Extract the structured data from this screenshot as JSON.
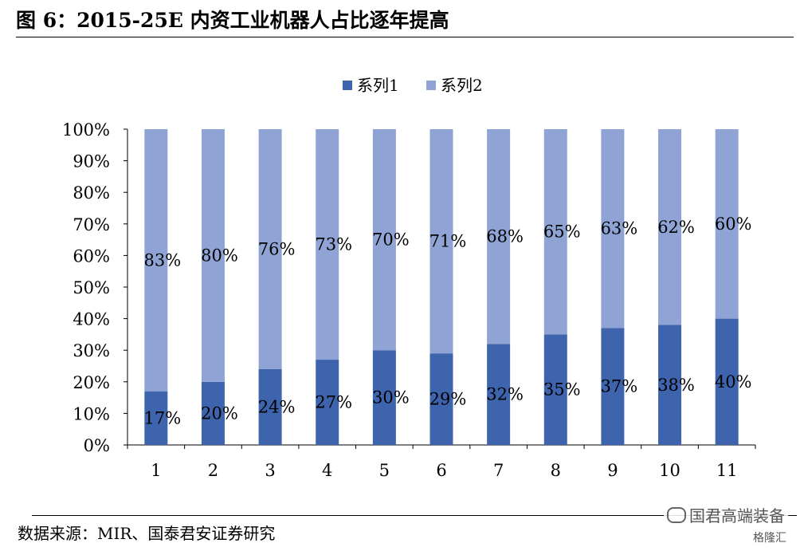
{
  "figure": {
    "title": "图 6：2015-25E 内资工业机器人占比逐年提高",
    "source": "数据来源：MIR、国泰君安证券研究",
    "watermark": "国君高端装备",
    "watermark_sub": "格隆汇"
  },
  "chart_data": {
    "type": "bar",
    "stacked": true,
    "title": "",
    "xlabel": "",
    "ylabel": "",
    "categories": [
      "1",
      "2",
      "3",
      "4",
      "5",
      "6",
      "7",
      "8",
      "9",
      "10",
      "11"
    ],
    "series": [
      {
        "name": "系列1",
        "color": "#3d64ad",
        "values": [
          17,
          20,
          24,
          27,
          30,
          29,
          32,
          35,
          37,
          38,
          40
        ],
        "labels": [
          "17%",
          "20%",
          "24%",
          "27%",
          "30%",
          "29%",
          "32%",
          "35%",
          "37%",
          "38%",
          "40%"
        ]
      },
      {
        "name": "系列2",
        "color": "#8fa4d4",
        "values": [
          83,
          80,
          76,
          73,
          70,
          71,
          68,
          65,
          63,
          62,
          60
        ],
        "labels": [
          "83%",
          "80%",
          "76%",
          "73%",
          "70%",
          "71%",
          "68%",
          "65%",
          "63%",
          "62%",
          "60%"
        ]
      }
    ],
    "ylim": [
      0,
      100
    ],
    "yticks": [
      "0%",
      "10%",
      "20%",
      "30%",
      "40%",
      "50%",
      "60%",
      "70%",
      "80%",
      "90%",
      "100%"
    ],
    "grid": false,
    "legend": "top-center"
  }
}
